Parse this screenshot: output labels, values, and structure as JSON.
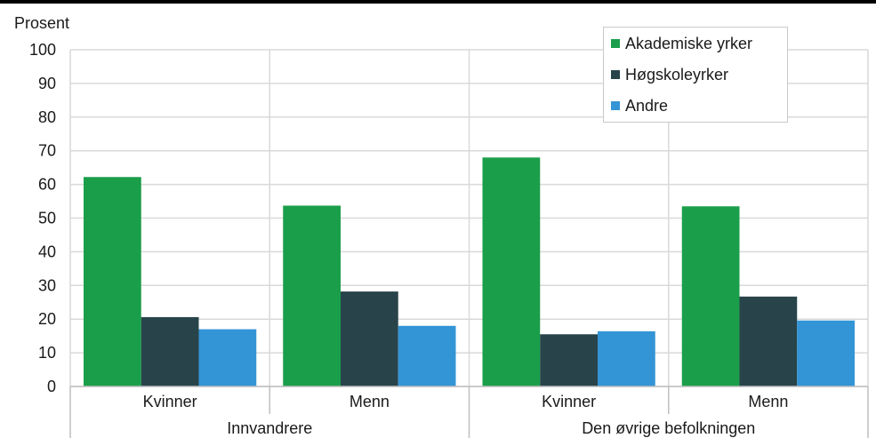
{
  "chart_data": {
    "type": "bar",
    "ylabel": "Prosent",
    "ylim": [
      0,
      100
    ],
    "yticks": [
      0,
      10,
      20,
      30,
      40,
      50,
      60,
      70,
      80,
      90,
      100
    ],
    "grid": true,
    "legend_position": "top-right",
    "groups": [
      {
        "label": "Innvandrere",
        "categories": [
          "Kvinner",
          "Menn"
        ]
      },
      {
        "label": "Den øvrige befolkningen",
        "categories": [
          "Kvinner",
          "Menn"
        ]
      }
    ],
    "series": [
      {
        "name": "Akademiske yrker",
        "color": "#1a9e4a",
        "values": [
          62.2,
          53.7,
          68.0,
          53.5
        ]
      },
      {
        "name": "Høgskoleyrker",
        "color": "#28444a",
        "values": [
          20.6,
          28.2,
          15.5,
          26.7
        ]
      },
      {
        "name": "Andre",
        "color": "#3394d6",
        "values": [
          17.0,
          18.0,
          16.4,
          19.6
        ]
      }
    ]
  }
}
